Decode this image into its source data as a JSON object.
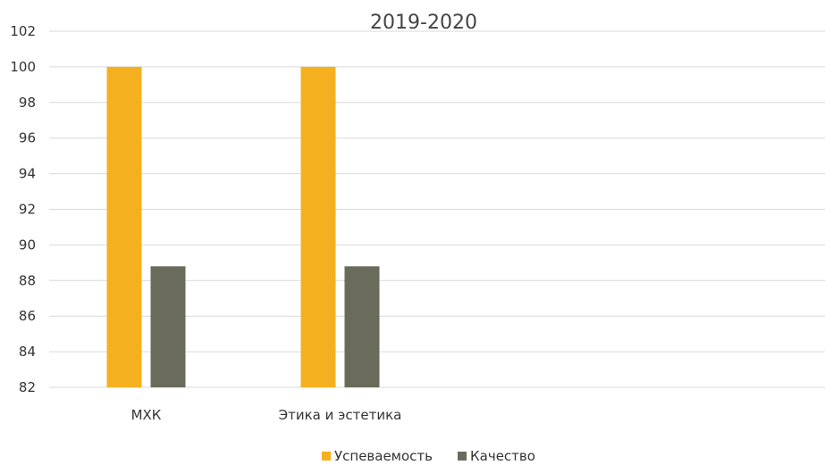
{
  "chart_data": {
    "type": "bar",
    "title": "2019-2020",
    "xlabel": "",
    "ylabel": "",
    "categories": [
      "МХК",
      "Этика и эстетика",
      "",
      ""
    ],
    "series": [
      {
        "name": "Успеваемость",
        "color": "#f5b020",
        "values": [
          100,
          100,
          null,
          null
        ]
      },
      {
        "name": "Качество",
        "color": "#6b6b5b",
        "values": [
          88.8,
          88.8,
          null,
          null
        ]
      }
    ],
    "ylim": [
      82,
      102
    ],
    "yticks": [
      82,
      84,
      86,
      88,
      90,
      92,
      94,
      96,
      98,
      100,
      102
    ],
    "grid": true,
    "legend_position": "bottom"
  }
}
